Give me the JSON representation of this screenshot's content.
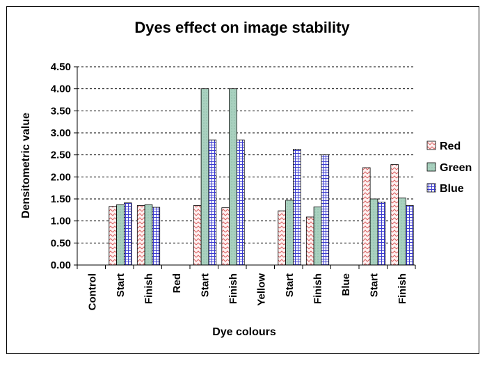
{
  "chart_data": {
    "type": "bar",
    "title": "Dyes effect on image stability",
    "xlabel": "Dye colours",
    "ylabel": "Densitometric value",
    "ylim": [
      0,
      4.5
    ],
    "yticks": [
      "0.00",
      "0.50",
      "1.00",
      "1.50",
      "2.00",
      "2.50",
      "3.00",
      "3.50",
      "4.00",
      "4.50"
    ],
    "grid": true,
    "legend_position": "right",
    "categories": [
      "Control",
      "Start",
      "Finish",
      "Red",
      "Start",
      "Finish",
      "Yellow",
      "Start",
      "Finish",
      "Blue",
      "Start",
      "Finish"
    ],
    "series": [
      {
        "name": "Red",
        "color": "#f0b8b8",
        "values": [
          null,
          1.33,
          1.35,
          null,
          1.35,
          1.3,
          null,
          1.23,
          1.09,
          null,
          2.21,
          2.28
        ]
      },
      {
        "name": "Green",
        "color": "#b3d6c6",
        "values": [
          null,
          1.37,
          1.37,
          null,
          4.0,
          4.0,
          null,
          1.47,
          1.32,
          null,
          1.5,
          1.52
        ]
      },
      {
        "name": "Blue",
        "color": "#b8b8f0",
        "values": [
          null,
          1.41,
          1.31,
          null,
          2.84,
          2.84,
          null,
          2.63,
          2.5,
          null,
          1.43,
          1.35
        ]
      }
    ]
  }
}
